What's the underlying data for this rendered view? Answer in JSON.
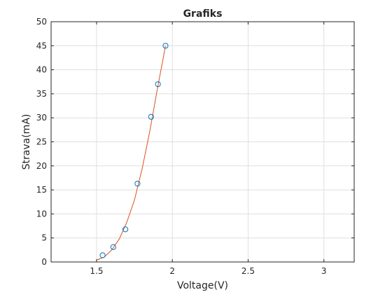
{
  "chart_data": {
    "type": "scatter",
    "title": "Grafiks",
    "xlabel": "Voltage(V)",
    "ylabel": "Strava(mA)",
    "xlim": [
      1.2,
      3.2
    ],
    "ylim": [
      0,
      50
    ],
    "xticks": [
      1.5,
      2,
      2.5,
      3
    ],
    "xtick_labels": [
      "1.5",
      "2",
      "2.5",
      "3"
    ],
    "yticks": [
      0,
      5,
      10,
      15,
      20,
      25,
      30,
      35,
      40,
      45,
      50
    ],
    "ytick_labels": [
      "0",
      "5",
      "10",
      "15",
      "20",
      "25",
      "30",
      "35",
      "40",
      "45",
      "50"
    ],
    "grid": true,
    "series": [
      {
        "type": "scatter",
        "marker": "circle-open",
        "color": "#0072BD",
        "x": [
          1.54,
          1.61,
          1.69,
          1.77,
          1.86,
          1.905,
          1.955
        ],
        "y": [
          1.4,
          3.1,
          6.8,
          16.3,
          30.2,
          37.0,
          45.0
        ]
      },
      {
        "type": "line",
        "color": "#D95319",
        "x": [
          1.5,
          1.55,
          1.6,
          1.65,
          1.7,
          1.75,
          1.8,
          1.85,
          1.9,
          1.955
        ],
        "y": [
          0.4,
          1.0,
          2.5,
          4.8,
          8.3,
          12.9,
          19.3,
          27.0,
          35.8,
          45.0
        ]
      }
    ]
  }
}
